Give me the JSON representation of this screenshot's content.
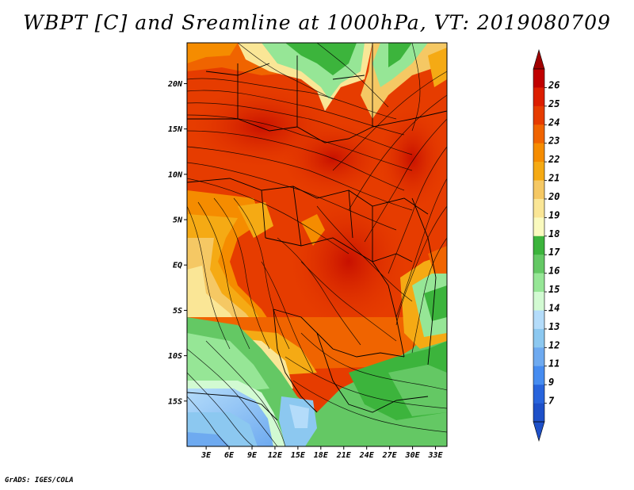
{
  "title": "WBPT [C] and Sreamline at 1000hPa, VT: 2019080709",
  "footer": "GrADS: IGES/COLA",
  "map": {
    "lat_ticks": [
      "20N",
      "15N",
      "10N",
      "5N",
      "EQ",
      "5S",
      "10S",
      "15S"
    ],
    "lat_values": [
      20,
      15,
      10,
      5,
      0,
      -5,
      -10,
      -15
    ],
    "lon_ticks": [
      "3E",
      "6E",
      "9E",
      "12E",
      "15E",
      "18E",
      "21E",
      "24E",
      "27E",
      "30E",
      "33E"
    ],
    "lon_values": [
      3,
      6,
      9,
      12,
      15,
      18,
      21,
      24,
      27,
      30,
      33
    ],
    "lon_range": [
      0.5,
      34.5
    ],
    "lat_range": [
      -20,
      24.5
    ]
  },
  "colorbar": {
    "labels": [
      "26",
      "25",
      "24",
      "23",
      "22",
      "21",
      "20",
      "19",
      "18",
      "17",
      "16",
      "15",
      "14",
      "13",
      "12",
      "11",
      "9",
      "7"
    ],
    "colors": [
      "#c00000",
      "#dc1e00",
      "#e63c00",
      "#f06400",
      "#f58c00",
      "#f5aa14",
      "#f5c864",
      "#fae696",
      "#fafabe",
      "#3cb43c",
      "#64c864",
      "#96e696",
      "#d2fad2",
      "#b4dcfa",
      "#8cc8f0",
      "#6eaaf0",
      "#468cf0",
      "#2864dc",
      "#1e50c8"
    ],
    "tip_top": "#a00000",
    "tip_bottom": "#1e50c8"
  }
}
